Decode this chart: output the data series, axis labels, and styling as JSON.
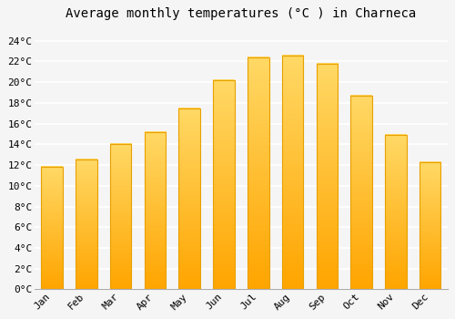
{
  "title": "Average monthly temperatures (°C ) in Charneca",
  "months": [
    "Jan",
    "Feb",
    "Mar",
    "Apr",
    "May",
    "Jun",
    "Jul",
    "Aug",
    "Sep",
    "Oct",
    "Nov",
    "Dec"
  ],
  "values": [
    11.8,
    12.5,
    14.0,
    15.2,
    17.5,
    20.2,
    22.4,
    22.6,
    21.8,
    18.7,
    14.9,
    12.3
  ],
  "bar_color_top": "#FFD966",
  "bar_color_bottom": "#FFA500",
  "bar_edge_color": "#E8A000",
  "background_color": "#F5F5F5",
  "plot_bg_color": "#F5F5F5",
  "grid_color": "#FFFFFF",
  "ytick_labels": [
    "0°C",
    "2°C",
    "4°C",
    "6°C",
    "8°C",
    "10°C",
    "12°C",
    "14°C",
    "16°C",
    "18°C",
    "20°C",
    "22°C",
    "24°C"
  ],
  "ytick_values": [
    0,
    2,
    4,
    6,
    8,
    10,
    12,
    14,
    16,
    18,
    20,
    22,
    24
  ],
  "ylim": [
    0,
    25.5
  ],
  "title_fontsize": 10,
  "tick_fontsize": 8,
  "font_family": "monospace"
}
